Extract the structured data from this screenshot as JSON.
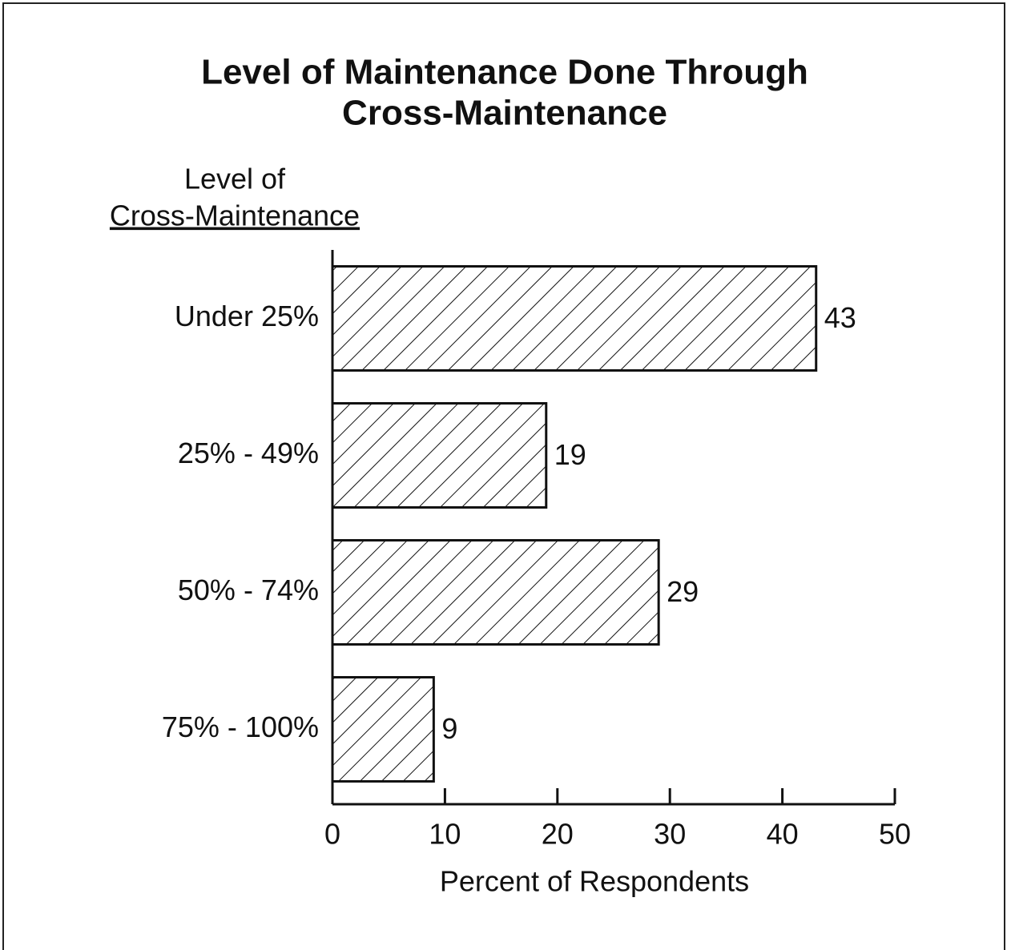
{
  "chart_data": {
    "type": "bar",
    "orientation": "horizontal",
    "title": [
      "Level of Maintenance Done Through",
      "Cross-Maintenance"
    ],
    "y_label": [
      "Level of",
      "Cross-Maintenance"
    ],
    "x_label": "Percent of Respondents",
    "categories": [
      "Under 25%",
      "25% - 49%",
      "50% - 74%",
      "75% - 100%"
    ],
    "values": [
      43,
      19,
      29,
      9
    ],
    "color": "#111111",
    "xlim": [
      0,
      50
    ],
    "xticks": [
      0,
      10,
      20,
      30,
      40,
      50
    ]
  }
}
